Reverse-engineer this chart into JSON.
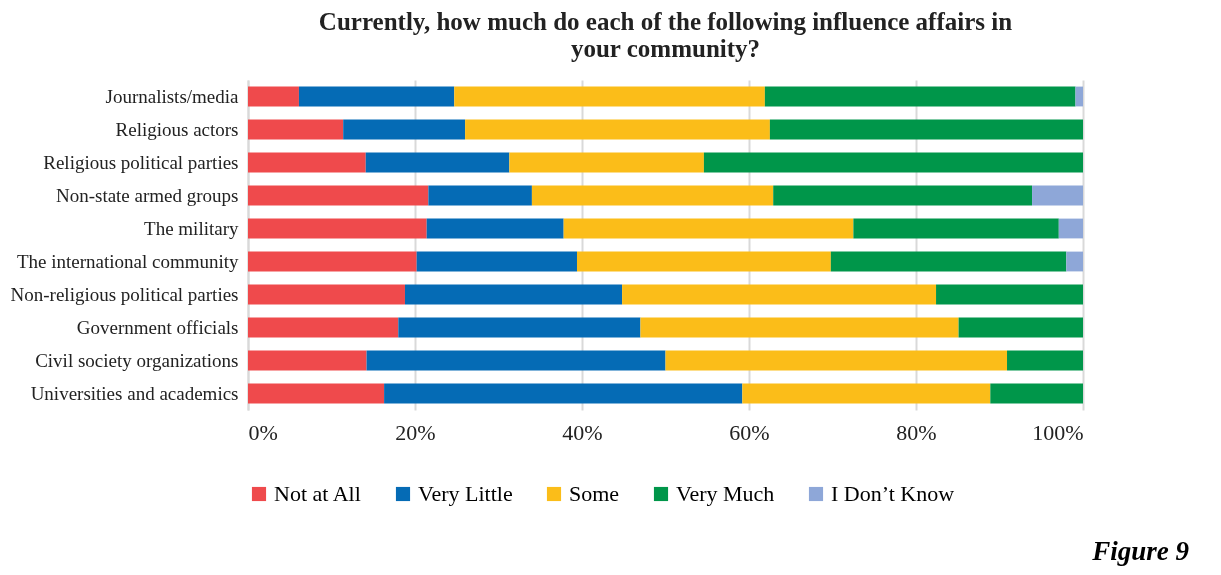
{
  "chart_data": {
    "type": "bar",
    "orientation": "horizontal",
    "stacked": true,
    "title": "Currently, how much do each of the following influence affairs in your community?",
    "categories": [
      "Journalists/media",
      "Religious actors",
      "Religious political parties",
      "Non-state armed groups",
      "The military",
      "The international community",
      "Non-religious political parties",
      "Government officials",
      "Civil society organizations",
      "Universities and academics"
    ],
    "series": [
      {
        "name": "Not at All",
        "color": "#ef4a4c",
        "values": [
          6.1,
          11.4,
          14.1,
          21.6,
          21.4,
          20.2,
          18.8,
          18.0,
          14.2,
          16.3
        ]
      },
      {
        "name": "Very Little",
        "color": "#056bb5",
        "values": [
          18.6,
          14.6,
          17.2,
          12.4,
          16.4,
          19.2,
          26.0,
          29.0,
          35.8,
          42.9
        ]
      },
      {
        "name": "Some",
        "color": "#fbbd19",
        "values": [
          37.2,
          36.5,
          23.3,
          28.9,
          34.7,
          30.4,
          37.6,
          38.1,
          40.9,
          29.7
        ]
      },
      {
        "name": "Very Much",
        "color": "#00964a",
        "values": [
          37.2,
          37.5,
          45.4,
          31.0,
          24.6,
          28.2,
          17.6,
          14.9,
          9.1,
          11.1
        ]
      },
      {
        "name": "I Don’t Know",
        "color": "#8ea7d8",
        "values": [
          0.9,
          null,
          null,
          6.1,
          2.9,
          2.0,
          null,
          null,
          null,
          null
        ]
      }
    ],
    "xlim": [
      0,
      100
    ],
    "xticks": [
      {
        "value": 0,
        "label": "0%"
      },
      {
        "value": 20,
        "label": "20%"
      },
      {
        "value": 40,
        "label": "40%"
      },
      {
        "value": 60,
        "label": "60%"
      },
      {
        "value": 80,
        "label": "80%"
      },
      {
        "value": 100,
        "label": "100%"
      }
    ],
    "grid": true,
    "legend": "bottom",
    "annotations": [
      "Figure 9"
    ]
  }
}
